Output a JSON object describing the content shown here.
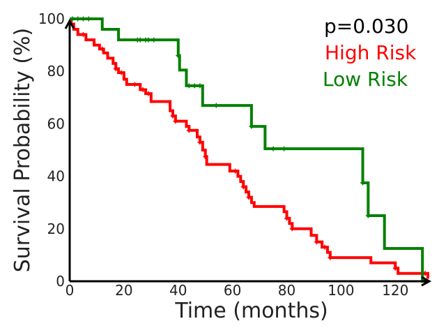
{
  "chart_data": {
    "type": "line",
    "subtype": "kaplan-meier",
    "title": "",
    "xlabel": "Time (months)",
    "ylabel": "Survival Probability (%)",
    "xlim": [
      0,
      132
    ],
    "ylim": [
      0,
      100
    ],
    "xticks": [
      0,
      20,
      40,
      60,
      80,
      100,
      120
    ],
    "yticks": [
      0,
      20,
      40,
      60,
      80,
      100
    ],
    "grid": false,
    "annotations": {
      "p_value": "p=0.030",
      "p_value_color": "#000000"
    },
    "series": [
      {
        "name": "High Risk",
        "color": "#ff0000",
        "steps": [
          [
            0,
            100
          ],
          [
            0.5,
            98
          ],
          [
            1.5,
            96
          ],
          [
            3,
            94
          ],
          [
            6,
            92
          ],
          [
            9,
            90
          ],
          [
            11,
            88.5
          ],
          [
            12.5,
            87
          ],
          [
            14,
            85
          ],
          [
            16,
            83
          ],
          [
            17,
            81
          ],
          [
            18,
            79.5
          ],
          [
            20,
            77
          ],
          [
            21,
            75
          ],
          [
            26,
            73
          ],
          [
            28,
            71.5
          ],
          [
            30,
            68.5
          ],
          [
            37,
            65
          ],
          [
            38,
            63
          ],
          [
            39,
            61
          ],
          [
            43,
            59
          ],
          [
            44,
            57.5
          ],
          [
            47,
            55
          ],
          [
            48,
            53
          ],
          [
            49,
            50
          ],
          [
            50,
            47.5
          ],
          [
            50.5,
            44.5
          ],
          [
            59,
            42
          ],
          [
            62,
            40
          ],
          [
            63,
            38
          ],
          [
            64,
            36
          ],
          [
            65,
            34
          ],
          [
            66,
            32
          ],
          [
            67,
            30
          ],
          [
            68,
            28.5
          ],
          [
            79,
            26.5
          ],
          [
            80,
            24
          ],
          [
            81,
            22
          ],
          [
            82,
            20
          ],
          [
            89,
            17.5
          ],
          [
            91,
            15
          ],
          [
            93,
            13
          ],
          [
            95,
            11
          ],
          [
            96,
            9
          ],
          [
            111,
            7
          ],
          [
            120,
            5
          ],
          [
            121,
            3
          ],
          [
            132,
            1
          ]
        ],
        "censor": [
          5,
          12,
          17,
          19,
          24,
          27,
          29,
          38,
          39,
          44,
          48,
          50,
          61,
          64,
          66,
          80,
          82,
          91,
          94,
          96,
          120,
          131
        ]
      },
      {
        "name": "Low Risk",
        "color": "#008000",
        "steps": [
          [
            0,
            100
          ],
          [
            12,
            96
          ],
          [
            18,
            92
          ],
          [
            40,
            86
          ],
          [
            40.5,
            80.5
          ],
          [
            43,
            74.5
          ],
          [
            49,
            67
          ],
          [
            67,
            59
          ],
          [
            72,
            50.5
          ],
          [
            108,
            37.5
          ],
          [
            110,
            25
          ],
          [
            116,
            12.5
          ],
          [
            130,
            0
          ]
        ],
        "censor": [
          1,
          3,
          5,
          7,
          25,
          26,
          28,
          29,
          31,
          40,
          44,
          46,
          48,
          54,
          67,
          75,
          79,
          108,
          110
        ]
      }
    ]
  }
}
